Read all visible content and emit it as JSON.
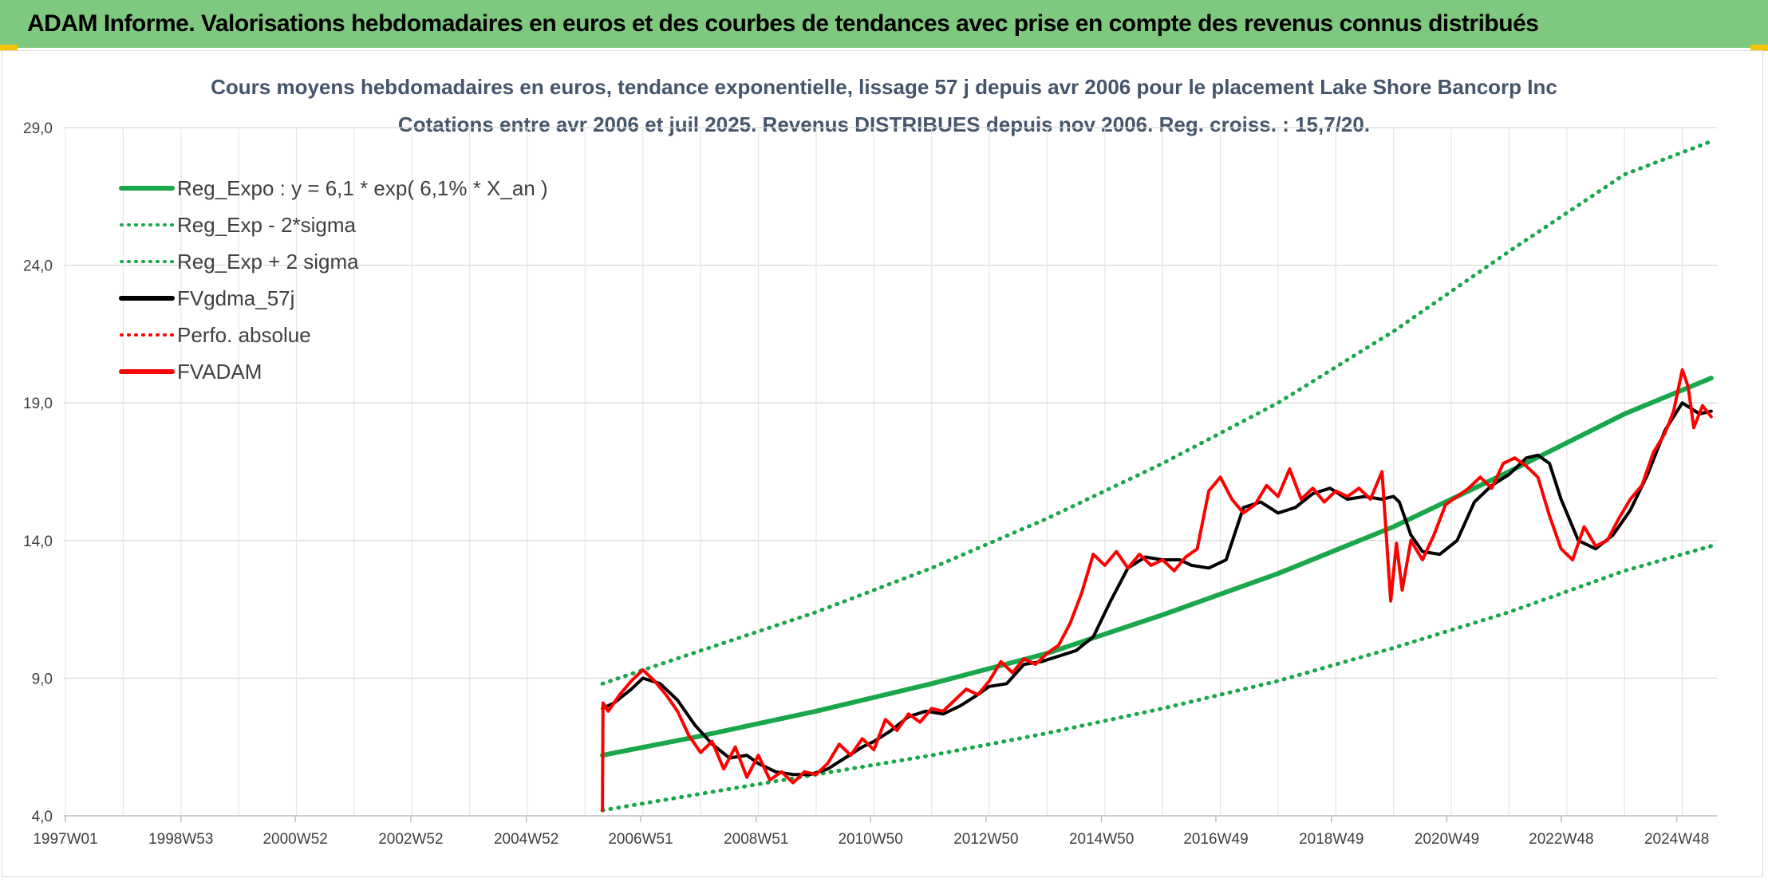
{
  "header": {
    "title": "ADAM Informe. Valorisations hebdomadaires en euros et des courbes de tendances avec prise en compte des revenus connus distribués"
  },
  "colors": {
    "banner": "#7fc97f",
    "trend": "#1aa64b",
    "fv": "#000000",
    "adam": "#ff0000"
  },
  "chart_data": {
    "type": "line",
    "title": "Cours moyens hebdomadaires en euros, tendance exponentielle, lissage 57 j depuis avr 2006 pour le placement Lake Shore Bancorp Inc",
    "subtitle": "Cotations entre avr 2006 et juil 2025. Revenus DISTRIBUES depuis nov 2006. Reg. croiss. : 15,7/20.",
    "x_ticks": [
      "1997W01",
      "1998W53",
      "2000W52",
      "2002W52",
      "2004W52",
      "2006W51",
      "2008W51",
      "2010W50",
      "2012W50",
      "2014W50",
      "2016W49",
      "2018W49",
      "2020W49",
      "2022W48",
      "2024W48"
    ],
    "xlim": [
      1997.0,
      2025.6
    ],
    "y_ticks": [
      "4,0",
      "9,0",
      "14,0",
      "19,0",
      "24,0",
      "29,0"
    ],
    "ylim": [
      4.0,
      29.0
    ],
    "grid": true,
    "legend_position": "top-left",
    "legend": [
      {
        "label": "Reg_Expo : y = 6,1 * exp( 6,1% *  X_an )",
        "style": "solid",
        "color": "#1aa64b"
      },
      {
        "label": "Reg_Exp - 2*sigma",
        "style": "dotted",
        "color": "#1aa64b"
      },
      {
        "label": "Reg_Exp + 2 sigma",
        "style": "dotted",
        "color": "#1aa64b"
      },
      {
        "label": "FVgdma_57j",
        "style": "solid",
        "color": "#000000"
      },
      {
        "label": "Perfo. absolue",
        "style": "dotted",
        "color": "#ff0000"
      },
      {
        "label": "FVADAM",
        "style": "solid",
        "color": "#ff0000"
      }
    ],
    "series": [
      {
        "name": "Reg_Expo : y = 6,1 * exp( 6,1% *  X_an )",
        "x": [
          2006.3,
          2008.0,
          2010.0,
          2012.0,
          2014.0,
          2016.0,
          2018.0,
          2020.0,
          2022.0,
          2024.0,
          2025.5
        ],
        "y": [
          6.2,
          6.9,
          7.8,
          8.8,
          9.9,
          11.3,
          12.8,
          14.5,
          16.5,
          18.6,
          19.9
        ]
      },
      {
        "name": "Reg_Exp - 2*sigma",
        "x": [
          2006.3,
          2008.0,
          2010.0,
          2012.0,
          2014.0,
          2016.0,
          2018.0,
          2020.0,
          2022.0,
          2024.0,
          2025.5
        ],
        "y": [
          4.2,
          4.8,
          5.5,
          6.2,
          7.0,
          7.9,
          8.9,
          10.1,
          11.4,
          12.9,
          13.8
        ]
      },
      {
        "name": "Reg_Exp + 2 sigma",
        "x": [
          2006.3,
          2008.0,
          2010.0,
          2012.0,
          2014.0,
          2016.0,
          2018.0,
          2020.0,
          2022.0,
          2024.0,
          2025.5
        ],
        "y": [
          8.8,
          10.0,
          11.4,
          13.0,
          14.8,
          16.8,
          19.0,
          21.6,
          24.5,
          27.3,
          28.5
        ]
      },
      {
        "name": "FVgdma_57j",
        "x": [
          2006.3,
          2006.5,
          2006.8,
          2007.0,
          2007.3,
          2007.6,
          2007.9,
          2008.2,
          2008.5,
          2008.8,
          2009.0,
          2009.3,
          2009.6,
          2009.9,
          2010.2,
          2010.5,
          2010.8,
          2011.0,
          2011.3,
          2011.6,
          2011.9,
          2012.2,
          2012.5,
          2012.8,
          2013.0,
          2013.3,
          2013.6,
          2013.9,
          2014.2,
          2014.5,
          2014.8,
          2015.1,
          2015.4,
          2015.7,
          2016.0,
          2016.3,
          2016.5,
          2016.8,
          2017.1,
          2017.4,
          2017.7,
          2018.0,
          2018.3,
          2018.6,
          2018.9,
          2019.2,
          2019.5,
          2019.8,
          2020.0,
          2020.1,
          2020.3,
          2020.5,
          2020.8,
          2021.1,
          2021.4,
          2021.7,
          2022.0,
          2022.3,
          2022.5,
          2022.7,
          2022.9,
          2023.2,
          2023.5,
          2023.8,
          2024.1,
          2024.4,
          2024.7,
          2025.0,
          2025.3,
          2025.5
        ],
        "y": [
          7.9,
          8.1,
          8.6,
          9.0,
          8.8,
          8.2,
          7.3,
          6.6,
          6.1,
          6.2,
          5.9,
          5.6,
          5.5,
          5.5,
          5.7,
          6.1,
          6.5,
          6.7,
          7.1,
          7.6,
          7.8,
          7.7,
          8.0,
          8.4,
          8.7,
          8.8,
          9.5,
          9.6,
          9.8,
          10.0,
          10.5,
          11.8,
          13.0,
          13.4,
          13.3,
          13.3,
          13.1,
          13.0,
          13.3,
          15.2,
          15.4,
          15.0,
          15.2,
          15.7,
          15.9,
          15.5,
          15.6,
          15.5,
          15.6,
          15.4,
          14.2,
          13.6,
          13.5,
          14.0,
          15.4,
          16.0,
          16.4,
          17.0,
          17.1,
          16.8,
          15.5,
          14.0,
          13.7,
          14.2,
          15.1,
          16.4,
          18.0,
          19.0,
          18.6,
          18.7
        ]
      },
      {
        "name": "FVADAM",
        "x": [
          2006.3,
          2006.31,
          2006.4,
          2006.6,
          2006.8,
          2007.0,
          2007.2,
          2007.4,
          2007.6,
          2007.8,
          2008.0,
          2008.2,
          2008.4,
          2008.6,
          2008.8,
          2009.0,
          2009.2,
          2009.4,
          2009.6,
          2009.8,
          2010.0,
          2010.2,
          2010.4,
          2010.6,
          2010.8,
          2011.0,
          2011.2,
          2011.4,
          2011.6,
          2011.8,
          2012.0,
          2012.2,
          2012.4,
          2012.6,
          2012.8,
          2013.0,
          2013.2,
          2013.4,
          2013.6,
          2013.8,
          2014.0,
          2014.2,
          2014.4,
          2014.6,
          2014.8,
          2015.0,
          2015.2,
          2015.4,
          2015.6,
          2015.8,
          2016.0,
          2016.2,
          2016.4,
          2016.6,
          2016.8,
          2017.0,
          2017.2,
          2017.4,
          2017.6,
          2017.8,
          2018.0,
          2018.2,
          2018.4,
          2018.6,
          2018.8,
          2019.0,
          2019.2,
          2019.4,
          2019.6,
          2019.8,
          2019.95,
          2020.05,
          2020.15,
          2020.3,
          2020.5,
          2020.7,
          2020.9,
          2021.1,
          2021.3,
          2021.5,
          2021.7,
          2021.9,
          2022.1,
          2022.3,
          2022.5,
          2022.7,
          2022.9,
          2023.1,
          2023.3,
          2023.5,
          2023.7,
          2023.9,
          2024.1,
          2024.3,
          2024.5,
          2024.7,
          2024.85,
          2025.0,
          2025.1,
          2025.2,
          2025.35,
          2025.5
        ],
        "y": [
          4.2,
          8.1,
          7.8,
          8.4,
          8.9,
          9.3,
          8.9,
          8.4,
          7.8,
          6.9,
          6.3,
          6.7,
          5.7,
          6.5,
          5.4,
          6.2,
          5.3,
          5.6,
          5.2,
          5.6,
          5.5,
          5.9,
          6.6,
          6.2,
          6.8,
          6.4,
          7.5,
          7.1,
          7.7,
          7.4,
          7.9,
          7.8,
          8.2,
          8.6,
          8.4,
          8.9,
          9.6,
          9.2,
          9.7,
          9.5,
          9.9,
          10.2,
          11.0,
          12.1,
          13.5,
          13.1,
          13.6,
          13.0,
          13.5,
          13.1,
          13.3,
          12.9,
          13.4,
          13.7,
          15.8,
          16.3,
          15.5,
          15.0,
          15.3,
          16.0,
          15.6,
          16.6,
          15.5,
          15.9,
          15.4,
          15.8,
          15.6,
          15.9,
          15.5,
          16.5,
          11.8,
          13.9,
          12.2,
          14.0,
          13.3,
          14.2,
          15.3,
          15.6,
          15.9,
          16.3,
          15.9,
          16.8,
          17.0,
          16.7,
          16.3,
          14.9,
          13.7,
          13.3,
          14.5,
          13.8,
          14.0,
          14.8,
          15.5,
          16.0,
          17.2,
          17.9,
          18.7,
          20.2,
          19.6,
          18.1,
          18.9,
          18.5
        ]
      }
    ]
  }
}
